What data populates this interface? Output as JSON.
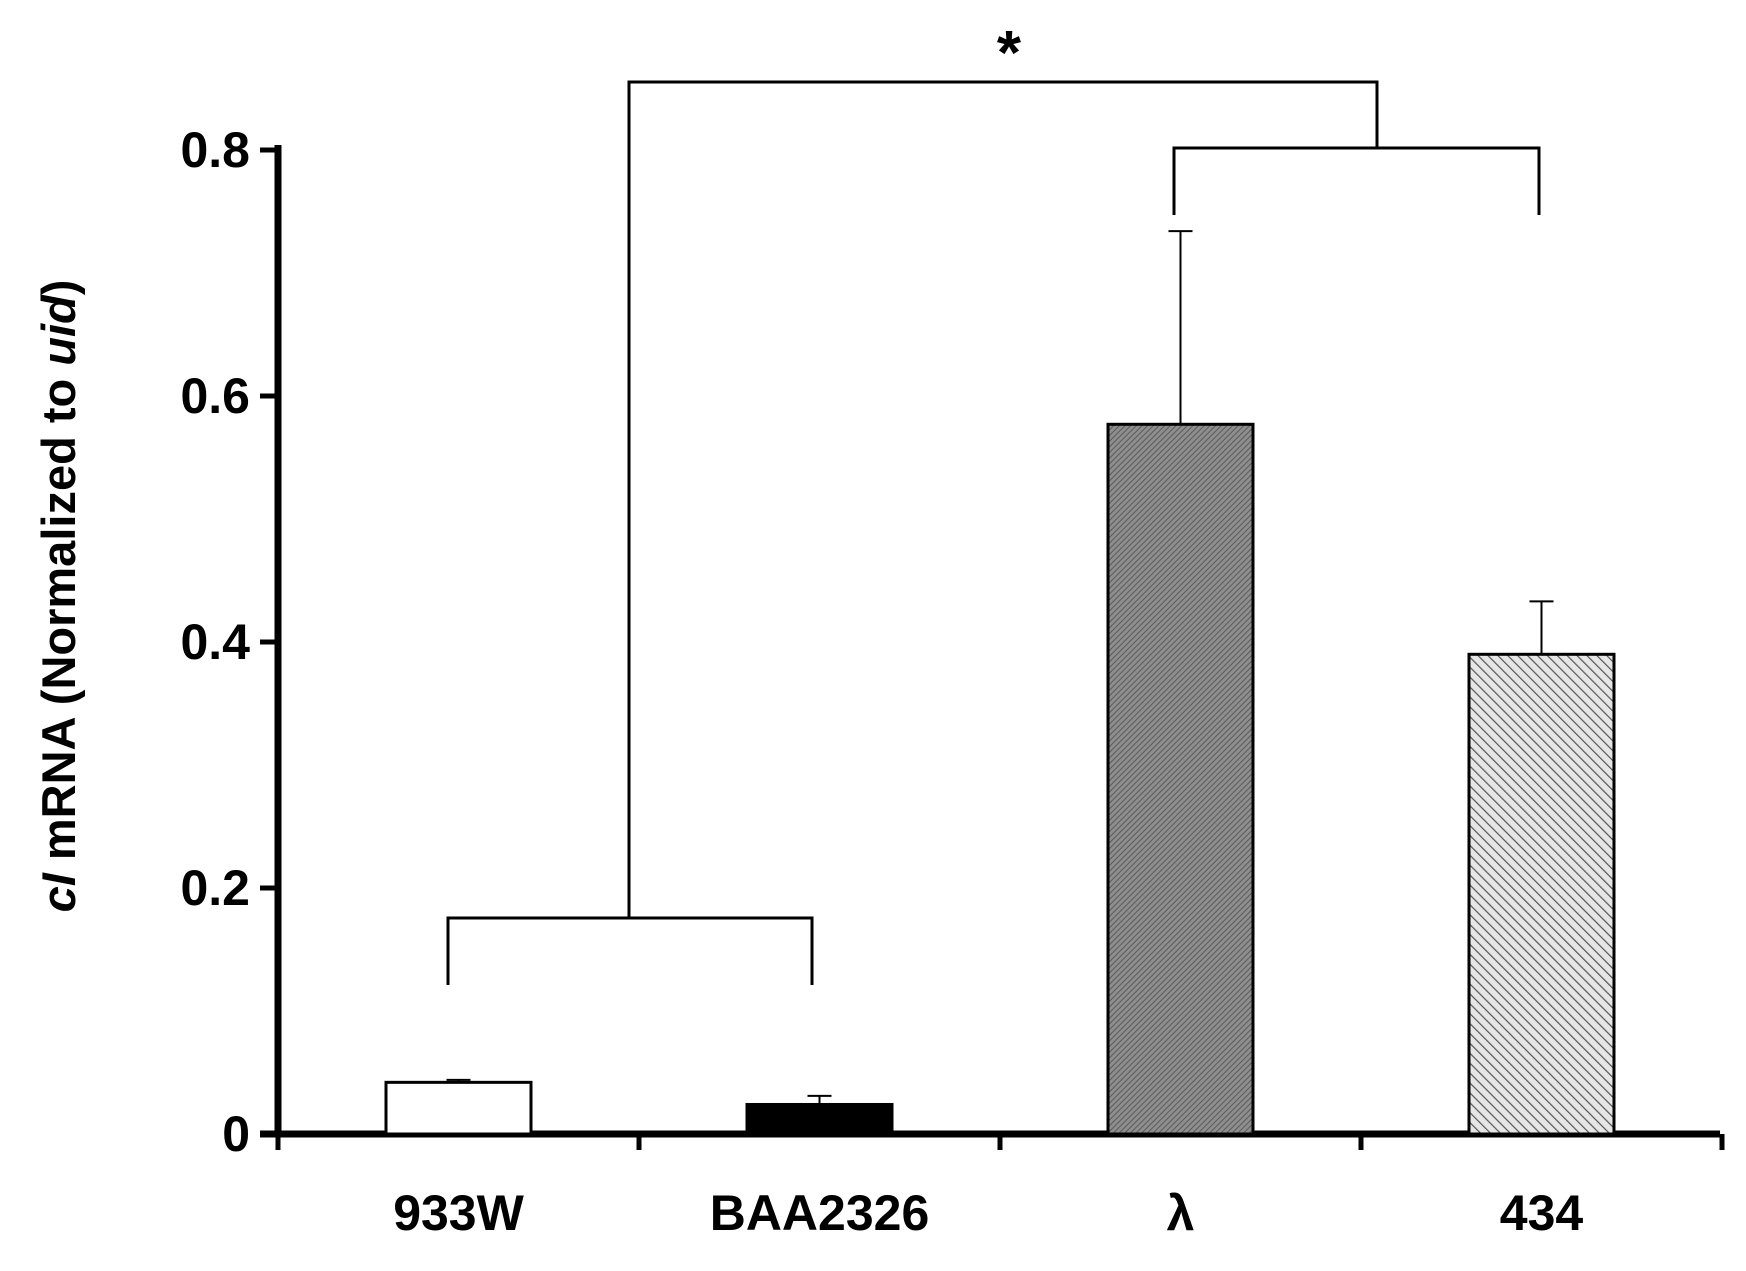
{
  "chart_data": {
    "type": "bar",
    "categories": [
      "933W",
      "BAA2326",
      "λ",
      "434"
    ],
    "values": [
      0.042,
      0.024,
      0.577,
      0.39
    ],
    "errors": [
      0.002,
      0.007,
      0.157,
      0.043
    ],
    "bar_fills": [
      "white",
      "black",
      "dense-hatch",
      "diagonal-hatch"
    ],
    "ylabel": {
      "prefix": "cI",
      "middle": " mRNA (Normalized to ",
      "gene": "uid",
      "suffix": ")"
    },
    "ylim": [
      0,
      0.8
    ],
    "yticks": [
      "0",
      "0.2",
      "0.4",
      "0.6",
      "0.8"
    ],
    "ytick_values": [
      0,
      0.2,
      0.4,
      0.6,
      0.8
    ],
    "grid": false,
    "legend": "none",
    "annotation": {
      "text": "*",
      "description": "significance bracket comparing group {933W, BAA2326} with group {λ, 434}"
    }
  }
}
